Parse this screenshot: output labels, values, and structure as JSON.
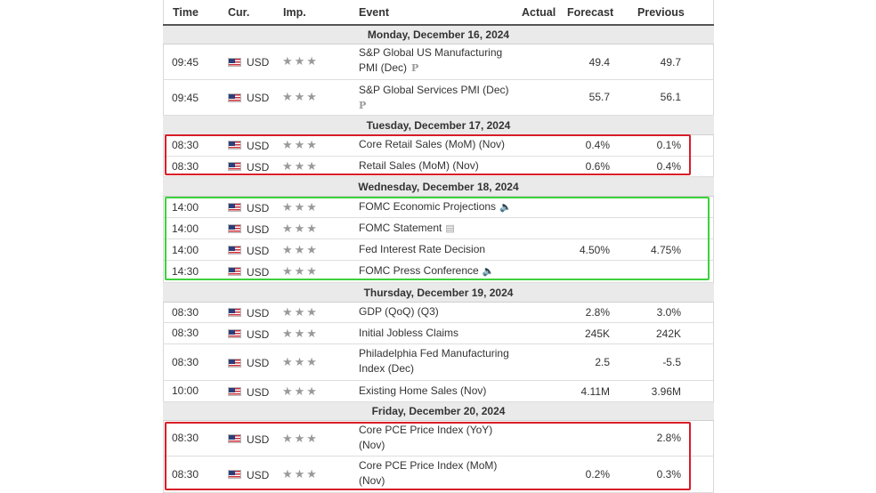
{
  "columns": {
    "time": "Time",
    "cur": "Cur.",
    "imp": "Imp.",
    "event": "Event",
    "actual": "Actual",
    "forecast": "Forecast",
    "previous": "Previous"
  },
  "stars": "★★★",
  "days": [
    {
      "label": "Monday, December 16, 2024",
      "events": [
        {
          "time": "09:45",
          "cur": "USD",
          "event_line1": "S&P Global US Manufacturing",
          "event_line2": "PMI (Dec)",
          "marker": "P",
          "forecast": "49.4",
          "previous": "49.7"
        },
        {
          "time": "09:45",
          "cur": "USD",
          "event_line1": "S&P Global Services PMI (Dec)",
          "event_line2": "",
          "marker": "P",
          "forecast": "55.7",
          "previous": "56.1"
        }
      ]
    },
    {
      "label": "Tuesday, December 17, 2024",
      "events": [
        {
          "time": "08:30",
          "cur": "USD",
          "event": "Core Retail Sales (MoM) (Nov)",
          "forecast": "0.4%",
          "previous": "0.1%"
        },
        {
          "time": "08:30",
          "cur": "USD",
          "event": "Retail Sales (MoM) (Nov)",
          "forecast": "0.6%",
          "previous": "0.4%"
        }
      ]
    },
    {
      "label": "Wednesday, December 18, 2024",
      "events": [
        {
          "time": "14:00",
          "cur": "USD",
          "event": "FOMC Economic Projections",
          "icon": "speaker-icon",
          "forecast": "",
          "previous": ""
        },
        {
          "time": "14:00",
          "cur": "USD",
          "event": "FOMC Statement",
          "icon": "document-icon",
          "forecast": "",
          "previous": ""
        },
        {
          "time": "14:00",
          "cur": "USD",
          "event": "Fed Interest Rate Decision",
          "forecast": "4.50%",
          "previous": "4.75%"
        },
        {
          "time": "14:30",
          "cur": "USD",
          "event": "FOMC Press Conference",
          "icon": "speaker-icon",
          "forecast": "",
          "previous": ""
        }
      ]
    },
    {
      "label": "Thursday, December 19, 2024",
      "events": [
        {
          "time": "08:30",
          "cur": "USD",
          "event": "GDP (QoQ) (Q3)",
          "forecast": "2.8%",
          "previous": "3.0%"
        },
        {
          "time": "08:30",
          "cur": "USD",
          "event": "Initial Jobless Claims",
          "forecast": "245K",
          "previous": "242K"
        },
        {
          "time": "08:30",
          "cur": "USD",
          "event_line1": "Philadelphia Fed Manufacturing",
          "event_line2": "Index (Dec)",
          "forecast": "2.5",
          "previous": "-5.5"
        },
        {
          "time": "10:00",
          "cur": "USD",
          "event": "Existing Home Sales (Nov)",
          "forecast": "4.11M",
          "previous": "3.96M"
        }
      ]
    },
    {
      "label": "Friday, December 20, 2024",
      "events": [
        {
          "time": "08:30",
          "cur": "USD",
          "event_line1": "Core PCE Price Index (YoY)",
          "event_line2": "(Nov)",
          "forecast": "",
          "previous": "2.8%"
        },
        {
          "time": "08:30",
          "cur": "USD",
          "event_line1": "Core PCE Price Index (MoM)",
          "event_line2": "(Nov)",
          "forecast": "0.2%",
          "previous": "0.3%"
        }
      ]
    }
  ],
  "highlight_colors": {
    "red": "#d81d28",
    "green": "#3cd13c"
  },
  "flag_icon": "us-flag-icon"
}
